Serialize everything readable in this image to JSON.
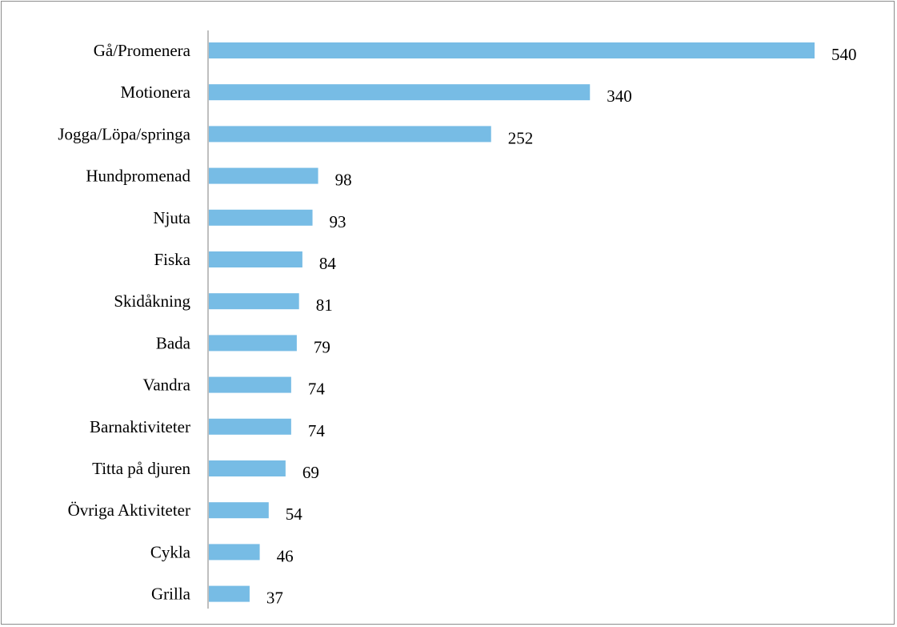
{
  "chart_data": {
    "type": "bar",
    "orientation": "horizontal",
    "categories": [
      "Gå/Promenera",
      "Motionera",
      "Jogga/Löpa/springa",
      "Hundpromenad",
      "Njuta",
      "Fiska",
      "Skidåkning",
      "Bada",
      "Vandra",
      "Barnaktiviteter",
      "Titta på djuren",
      "Övriga Aktiviteter",
      "Cykla",
      "Grilla"
    ],
    "values": [
      540,
      340,
      252,
      98,
      93,
      84,
      81,
      79,
      74,
      74,
      69,
      54,
      46,
      37
    ],
    "data_labels": [
      "540",
      "340",
      "252",
      "98",
      "93",
      "84",
      "81",
      "79",
      "74",
      "74",
      "69",
      "54",
      "46",
      "37"
    ],
    "title": "",
    "xlabel": "",
    "ylabel": "",
    "xlim": [
      0,
      540
    ],
    "grid": false,
    "legend": "none",
    "bar_color": "#77bce5",
    "axis_color": "#7f7f7f",
    "text_color": "#000000"
  }
}
